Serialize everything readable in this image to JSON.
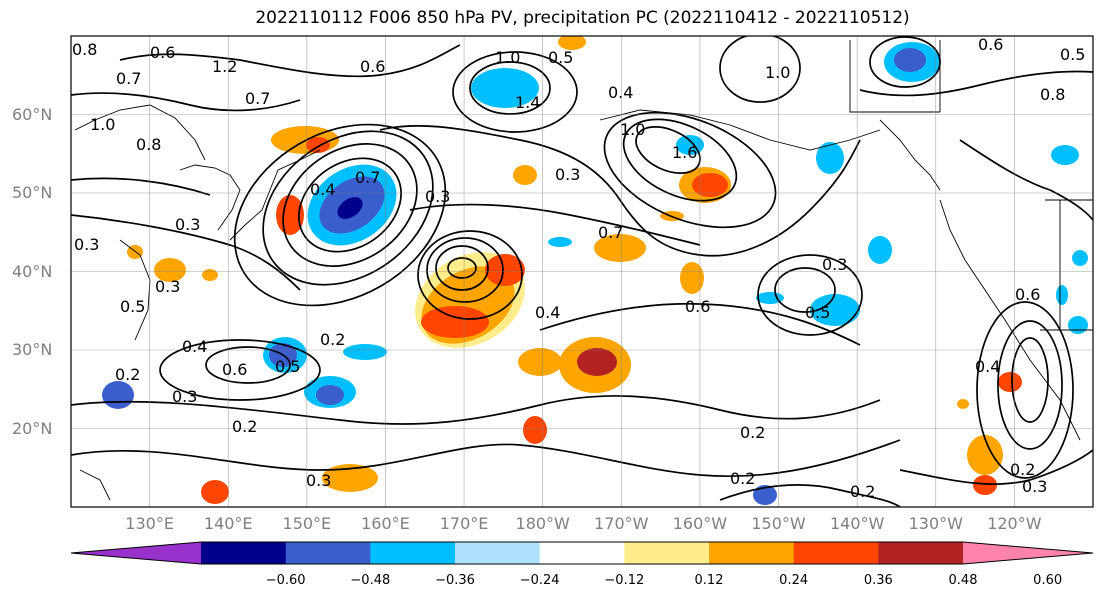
{
  "title": "2022110112 F006 850 hPa PV, precipitation PC (2022110412 - 2022110512)",
  "map": {
    "lat_labels": [
      {
        "text": "60°N",
        "lat": 60
      },
      {
        "text": "50°N",
        "lat": 50
      },
      {
        "text": "40°N",
        "lat": 40
      },
      {
        "text": "30°N",
        "lat": 30
      },
      {
        "text": "20°N",
        "lat": 20
      }
    ],
    "lon_labels": [
      "130°E",
      "140°E",
      "150°E",
      "160°E",
      "170°E",
      "180°W",
      "170°W",
      "160°W",
      "150°W",
      "140°W",
      "130°W",
      "120°W"
    ],
    "lon_range_deg_east": [
      120,
      250
    ],
    "lat_range": [
      10,
      70
    ],
    "contour_labels": [
      "0.8",
      "0.7",
      "1.2",
      "0.6",
      "0.7",
      "0.6",
      "1.0",
      "1.4",
      "0.5",
      "0.4",
      "1.0",
      "0.6",
      "0.5",
      "0.8",
      "1.0",
      "0.8",
      "0.3",
      "0.4",
      "0.7",
      "0.3",
      "0.3",
      "1.0",
      "1.6",
      "0.7",
      "0.3",
      "0.4",
      "0.6",
      "0.5",
      "0.3",
      "0.5",
      "0.3",
      "0.2",
      "0.4",
      "0.6",
      "0.5",
      "0.3",
      "0.2",
      "0.2",
      "0.2",
      "0.3",
      "0.2",
      "0.2",
      "0.4",
      "0.6",
      "0.2",
      "0.3"
    ]
  },
  "colorbar": {
    "colors": [
      "#9932cc",
      "#00008b",
      "#3a5fcd",
      "#00bfff",
      "#b0e2ff",
      "#ffffff",
      "#ffec8b",
      "#ffa500",
      "#ff4500",
      "#b22222",
      "#ff83ab"
    ],
    "labels": [
      "−0.60",
      "−0.48",
      "−0.36",
      "−0.24",
      "−0.12",
      "0.12",
      "0.24",
      "0.36",
      "0.48",
      "0.60"
    ]
  }
}
